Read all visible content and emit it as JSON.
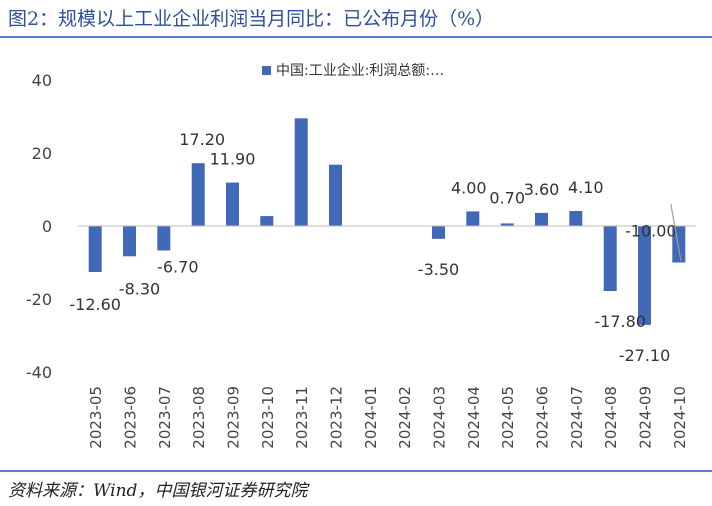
{
  "figure": {
    "title": "图2：规模以上工业企业利润当月同比：已公布月份（%）",
    "source": "资料来源：Wind，中国银河证券研究院"
  },
  "colors": {
    "bar": "#4169b8",
    "accent": "#2f4fa0",
    "rule": "#5a7bc4"
  },
  "chart_data": {
    "type": "bar",
    "title": "",
    "xlabel": "",
    "ylabel": "",
    "ylim": [
      -40,
      40
    ],
    "yticks": [
      40,
      20,
      0,
      -20,
      -40
    ],
    "grid": false,
    "legend_position": "top",
    "categories": [
      "2023-05",
      "2023-06",
      "2023-07",
      "2023-08",
      "2023-09",
      "2023-10",
      "2023-11",
      "2023-12",
      "2024-01",
      "2024-02",
      "2024-03",
      "2024-04",
      "2024-05",
      "2024-06",
      "2024-07",
      "2024-08",
      "2024-09",
      "2024-10"
    ],
    "series": [
      {
        "name": "中国:工业企业:利润总额:…",
        "values": [
          -12.6,
          -8.3,
          -6.7,
          17.2,
          11.9,
          2.7,
          29.5,
          16.8,
          null,
          null,
          -3.5,
          4.0,
          0.7,
          3.6,
          4.1,
          -17.8,
          -27.1,
          -10.0
        ]
      }
    ],
    "data_labels": [
      "-12.60",
      "-8.30",
      "-6.70",
      "17.20",
      "11.90",
      "",
      "",
      "",
      "",
      "",
      "-3.50",
      "4.00",
      "0.70",
      "3.60",
      "4.10",
      "-17.80",
      "-27.10",
      "-10.00"
    ]
  }
}
